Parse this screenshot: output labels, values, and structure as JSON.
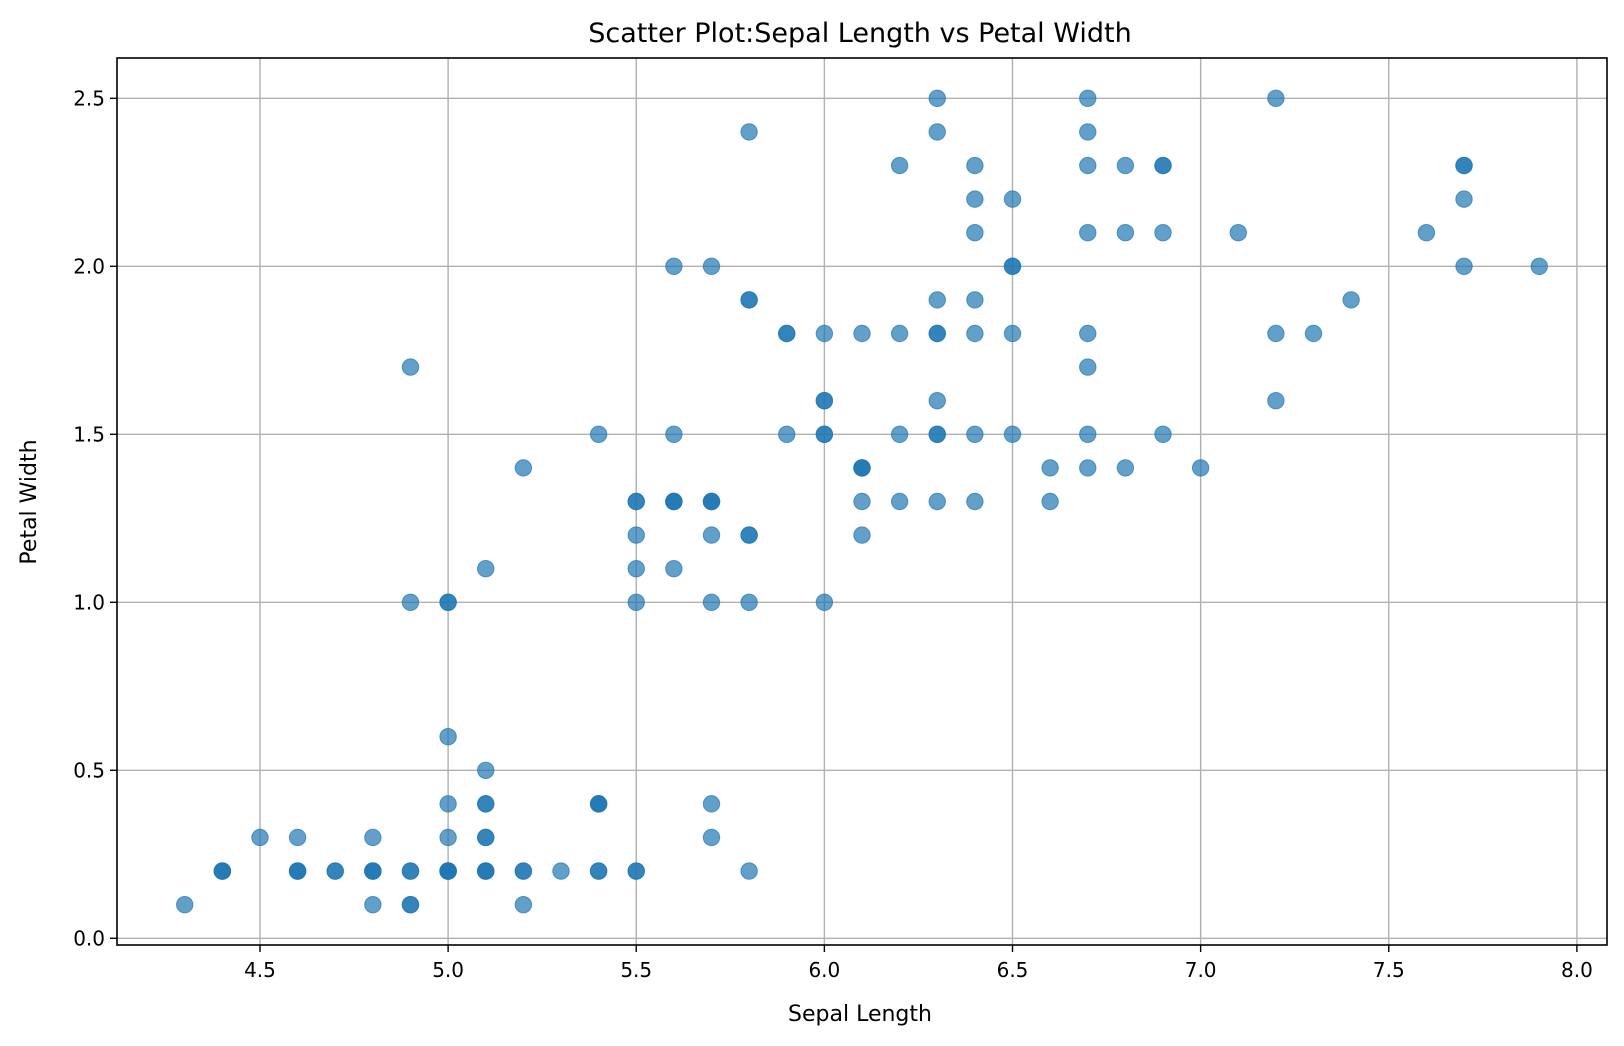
{
  "chart_data": {
    "type": "scatter",
    "title": "Scatter Plot:Sepal Length vs Petal Width",
    "xlabel": "Sepal Length",
    "ylabel": "Petal Width",
    "xlim": [
      4.12,
      8.08
    ],
    "ylim": [
      -0.02,
      2.62
    ],
    "xticks": [
      4.5,
      5.0,
      5.5,
      6.0,
      6.5,
      7.0,
      7.5,
      8.0
    ],
    "xtick_labels": [
      "4.5",
      "5.0",
      "5.5",
      "6.0",
      "6.5",
      "7.0",
      "7.5",
      "8.0"
    ],
    "yticks": [
      0.0,
      0.5,
      1.0,
      1.5,
      2.0,
      2.5
    ],
    "ytick_labels": [
      "0.0",
      "0.5",
      "1.0",
      "1.5",
      "2.0",
      "2.5"
    ],
    "grid": true,
    "marker_color": "#1f77b4",
    "marker_alpha": 0.7,
    "points": [
      [
        5.1,
        0.2
      ],
      [
        4.9,
        0.2
      ],
      [
        4.7,
        0.2
      ],
      [
        4.6,
        0.2
      ],
      [
        5.0,
        0.2
      ],
      [
        5.4,
        0.4
      ],
      [
        4.6,
        0.3
      ],
      [
        5.0,
        0.2
      ],
      [
        4.4,
        0.2
      ],
      [
        4.9,
        0.1
      ],
      [
        5.4,
        0.2
      ],
      [
        4.8,
        0.2
      ],
      [
        4.8,
        0.1
      ],
      [
        4.3,
        0.1
      ],
      [
        5.8,
        0.2
      ],
      [
        5.7,
        0.4
      ],
      [
        5.4,
        0.4
      ],
      [
        5.1,
        0.3
      ],
      [
        5.7,
        0.3
      ],
      [
        5.1,
        0.3
      ],
      [
        5.4,
        0.2
      ],
      [
        5.1,
        0.4
      ],
      [
        4.6,
        0.2
      ],
      [
        5.1,
        0.5
      ],
      [
        4.8,
        0.2
      ],
      [
        5.0,
        0.2
      ],
      [
        5.0,
        0.4
      ],
      [
        5.2,
        0.2
      ],
      [
        5.2,
        0.2
      ],
      [
        4.7,
        0.2
      ],
      [
        4.8,
        0.2
      ],
      [
        5.4,
        0.4
      ],
      [
        5.2,
        0.1
      ],
      [
        5.5,
        0.2
      ],
      [
        4.9,
        0.2
      ],
      [
        5.0,
        0.2
      ],
      [
        5.5,
        0.2
      ],
      [
        4.9,
        0.1
      ],
      [
        4.4,
        0.2
      ],
      [
        5.1,
        0.2
      ],
      [
        5.0,
        0.3
      ],
      [
        4.5,
        0.3
      ],
      [
        4.4,
        0.2
      ],
      [
        5.0,
        0.6
      ],
      [
        5.1,
        0.4
      ],
      [
        4.8,
        0.3
      ],
      [
        5.1,
        0.2
      ],
      [
        4.6,
        0.2
      ],
      [
        5.3,
        0.2
      ],
      [
        5.0,
        0.2
      ],
      [
        7.0,
        1.4
      ],
      [
        6.4,
        1.5
      ],
      [
        6.9,
        1.5
      ],
      [
        5.5,
        1.3
      ],
      [
        6.5,
        1.5
      ],
      [
        5.7,
        1.3
      ],
      [
        6.3,
        1.6
      ],
      [
        4.9,
        1.0
      ],
      [
        6.6,
        1.3
      ],
      [
        5.2,
        1.4
      ],
      [
        5.0,
        1.0
      ],
      [
        5.9,
        1.5
      ],
      [
        6.0,
        1.0
      ],
      [
        6.1,
        1.4
      ],
      [
        5.6,
        1.3
      ],
      [
        6.7,
        1.4
      ],
      [
        5.6,
        1.5
      ],
      [
        5.8,
        1.0
      ],
      [
        6.2,
        1.5
      ],
      [
        5.6,
        1.1
      ],
      [
        5.9,
        1.8
      ],
      [
        6.1,
        1.3
      ],
      [
        6.3,
        1.5
      ],
      [
        6.1,
        1.2
      ],
      [
        6.4,
        1.3
      ],
      [
        6.6,
        1.4
      ],
      [
        6.8,
        1.4
      ],
      [
        6.7,
        1.7
      ],
      [
        6.0,
        1.5
      ],
      [
        5.7,
        1.0
      ],
      [
        5.5,
        1.1
      ],
      [
        5.5,
        1.0
      ],
      [
        5.8,
        1.2
      ],
      [
        6.0,
        1.6
      ],
      [
        5.4,
        1.5
      ],
      [
        6.0,
        1.6
      ],
      [
        6.7,
        1.5
      ],
      [
        6.3,
        1.3
      ],
      [
        5.6,
        1.3
      ],
      [
        5.5,
        1.3
      ],
      [
        5.5,
        1.2
      ],
      [
        6.1,
        1.4
      ],
      [
        5.8,
        1.2
      ],
      [
        5.0,
        1.0
      ],
      [
        5.6,
        1.3
      ],
      [
        5.7,
        1.2
      ],
      [
        5.7,
        1.3
      ],
      [
        6.2,
        1.3
      ],
      [
        5.1,
        1.1
      ],
      [
        5.7,
        1.3
      ],
      [
        6.3,
        2.5
      ],
      [
        5.8,
        1.9
      ],
      [
        7.1,
        2.1
      ],
      [
        6.3,
        1.8
      ],
      [
        6.5,
        2.2
      ],
      [
        7.6,
        2.1
      ],
      [
        4.9,
        1.7
      ],
      [
        7.3,
        1.8
      ],
      [
        6.7,
        1.8
      ],
      [
        7.2,
        2.5
      ],
      [
        6.5,
        2.0
      ],
      [
        6.4,
        1.9
      ],
      [
        6.8,
        2.1
      ],
      [
        5.7,
        2.0
      ],
      [
        5.8,
        2.4
      ],
      [
        6.4,
        2.3
      ],
      [
        6.5,
        1.8
      ],
      [
        7.7,
        2.2
      ],
      [
        7.7,
        2.3
      ],
      [
        6.0,
        1.5
      ],
      [
        6.9,
        2.3
      ],
      [
        5.6,
        2.0
      ],
      [
        7.7,
        2.0
      ],
      [
        6.3,
        1.8
      ],
      [
        6.7,
        2.1
      ],
      [
        7.2,
        1.8
      ],
      [
        6.2,
        1.8
      ],
      [
        6.1,
        1.8
      ],
      [
        6.4,
        2.1
      ],
      [
        7.2,
        1.6
      ],
      [
        7.4,
        1.9
      ],
      [
        7.9,
        2.0
      ],
      [
        6.4,
        2.2
      ],
      [
        6.3,
        1.5
      ],
      [
        6.1,
        1.4
      ],
      [
        7.7,
        2.3
      ],
      [
        6.3,
        2.4
      ],
      [
        6.4,
        1.8
      ],
      [
        6.0,
        1.8
      ],
      [
        6.9,
        2.1
      ],
      [
        6.7,
        2.4
      ],
      [
        6.9,
        2.3
      ],
      [
        5.8,
        1.9
      ],
      [
        6.8,
        2.3
      ],
      [
        6.7,
        2.5
      ],
      [
        6.7,
        2.3
      ],
      [
        6.3,
        1.9
      ],
      [
        6.5,
        2.0
      ],
      [
        6.2,
        2.3
      ],
      [
        5.9,
        1.8
      ]
    ]
  }
}
